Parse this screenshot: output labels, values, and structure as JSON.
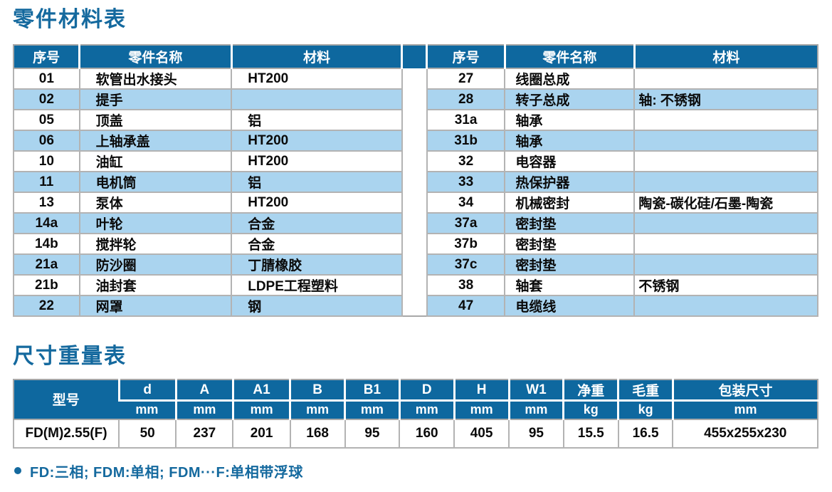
{
  "titles": {
    "parts": "零件材料表",
    "dimensions": "尺寸重量表"
  },
  "parts_table": {
    "headers": [
      "序号",
      "零件名称",
      "材料"
    ],
    "left_rows": [
      {
        "no": "01",
        "name": "软管出水接头",
        "material": "HT200"
      },
      {
        "no": "02",
        "name": "提手",
        "material": ""
      },
      {
        "no": "05",
        "name": "顶盖",
        "material": "铝"
      },
      {
        "no": "06",
        "name": "上轴承盖",
        "material": "HT200"
      },
      {
        "no": "10",
        "name": "油缸",
        "material": "HT200"
      },
      {
        "no": "11",
        "name": "电机筒",
        "material": "铝"
      },
      {
        "no": "13",
        "name": "泵体",
        "material": "HT200"
      },
      {
        "no": "14a",
        "name": "叶轮",
        "material": "合金"
      },
      {
        "no": "14b",
        "name": "搅拌轮",
        "material": "合金"
      },
      {
        "no": "21a",
        "name": "防沙圈",
        "material": "丁腈橡胶"
      },
      {
        "no": "21b",
        "name": "油封套",
        "material": "LDPE工程塑料"
      },
      {
        "no": "22",
        "name": "网罩",
        "material": "钢"
      }
    ],
    "right_rows": [
      {
        "no": "27",
        "name": "线圈总成",
        "material": ""
      },
      {
        "no": "28",
        "name": "转子总成",
        "material": "轴: 不锈钢"
      },
      {
        "no": "31a",
        "name": "轴承",
        "material": ""
      },
      {
        "no": "31b",
        "name": "轴承",
        "material": ""
      },
      {
        "no": "32",
        "name": "电容器",
        "material": ""
      },
      {
        "no": "33",
        "name": "热保护器",
        "material": ""
      },
      {
        "no": "34",
        "name": "机械密封",
        "material": "陶瓷-碳化硅/石墨-陶瓷"
      },
      {
        "no": "37a",
        "name": "密封垫",
        "material": ""
      },
      {
        "no": "37b",
        "name": "密封垫",
        "material": ""
      },
      {
        "no": "37c",
        "name": "密封垫",
        "material": ""
      },
      {
        "no": "38",
        "name": "轴套",
        "material": "不锈钢"
      },
      {
        "no": "47",
        "name": "电缆线",
        "material": ""
      }
    ]
  },
  "dimensions_table": {
    "model_header": "型号",
    "columns": [
      {
        "label": "d",
        "unit": "mm"
      },
      {
        "label": "A",
        "unit": "mm"
      },
      {
        "label": "A1",
        "unit": "mm"
      },
      {
        "label": "B",
        "unit": "mm"
      },
      {
        "label": "B1",
        "unit": "mm"
      },
      {
        "label": "D",
        "unit": "mm"
      },
      {
        "label": "H",
        "unit": "mm"
      },
      {
        "label": "W1",
        "unit": "mm"
      },
      {
        "label": "净重",
        "unit": "kg"
      },
      {
        "label": "毛重",
        "unit": "kg"
      },
      {
        "label": "包装尺寸",
        "unit": "mm"
      }
    ],
    "rows": [
      {
        "model": "FD(M)2.55(F)",
        "values": [
          "50",
          "237",
          "201",
          "168",
          "95",
          "160",
          "405",
          "95",
          "15.5",
          "16.5",
          "455x255x230"
        ]
      }
    ]
  },
  "footnote": {
    "text": "FD:三相; FDM:单相; FDM···F:单相带浮球"
  },
  "colors": {
    "header_blue": "#0e689f",
    "row_alt_blue": "#aad4ef",
    "title_blue": "#14699e",
    "border_gray": "#a8a8a8"
  }
}
